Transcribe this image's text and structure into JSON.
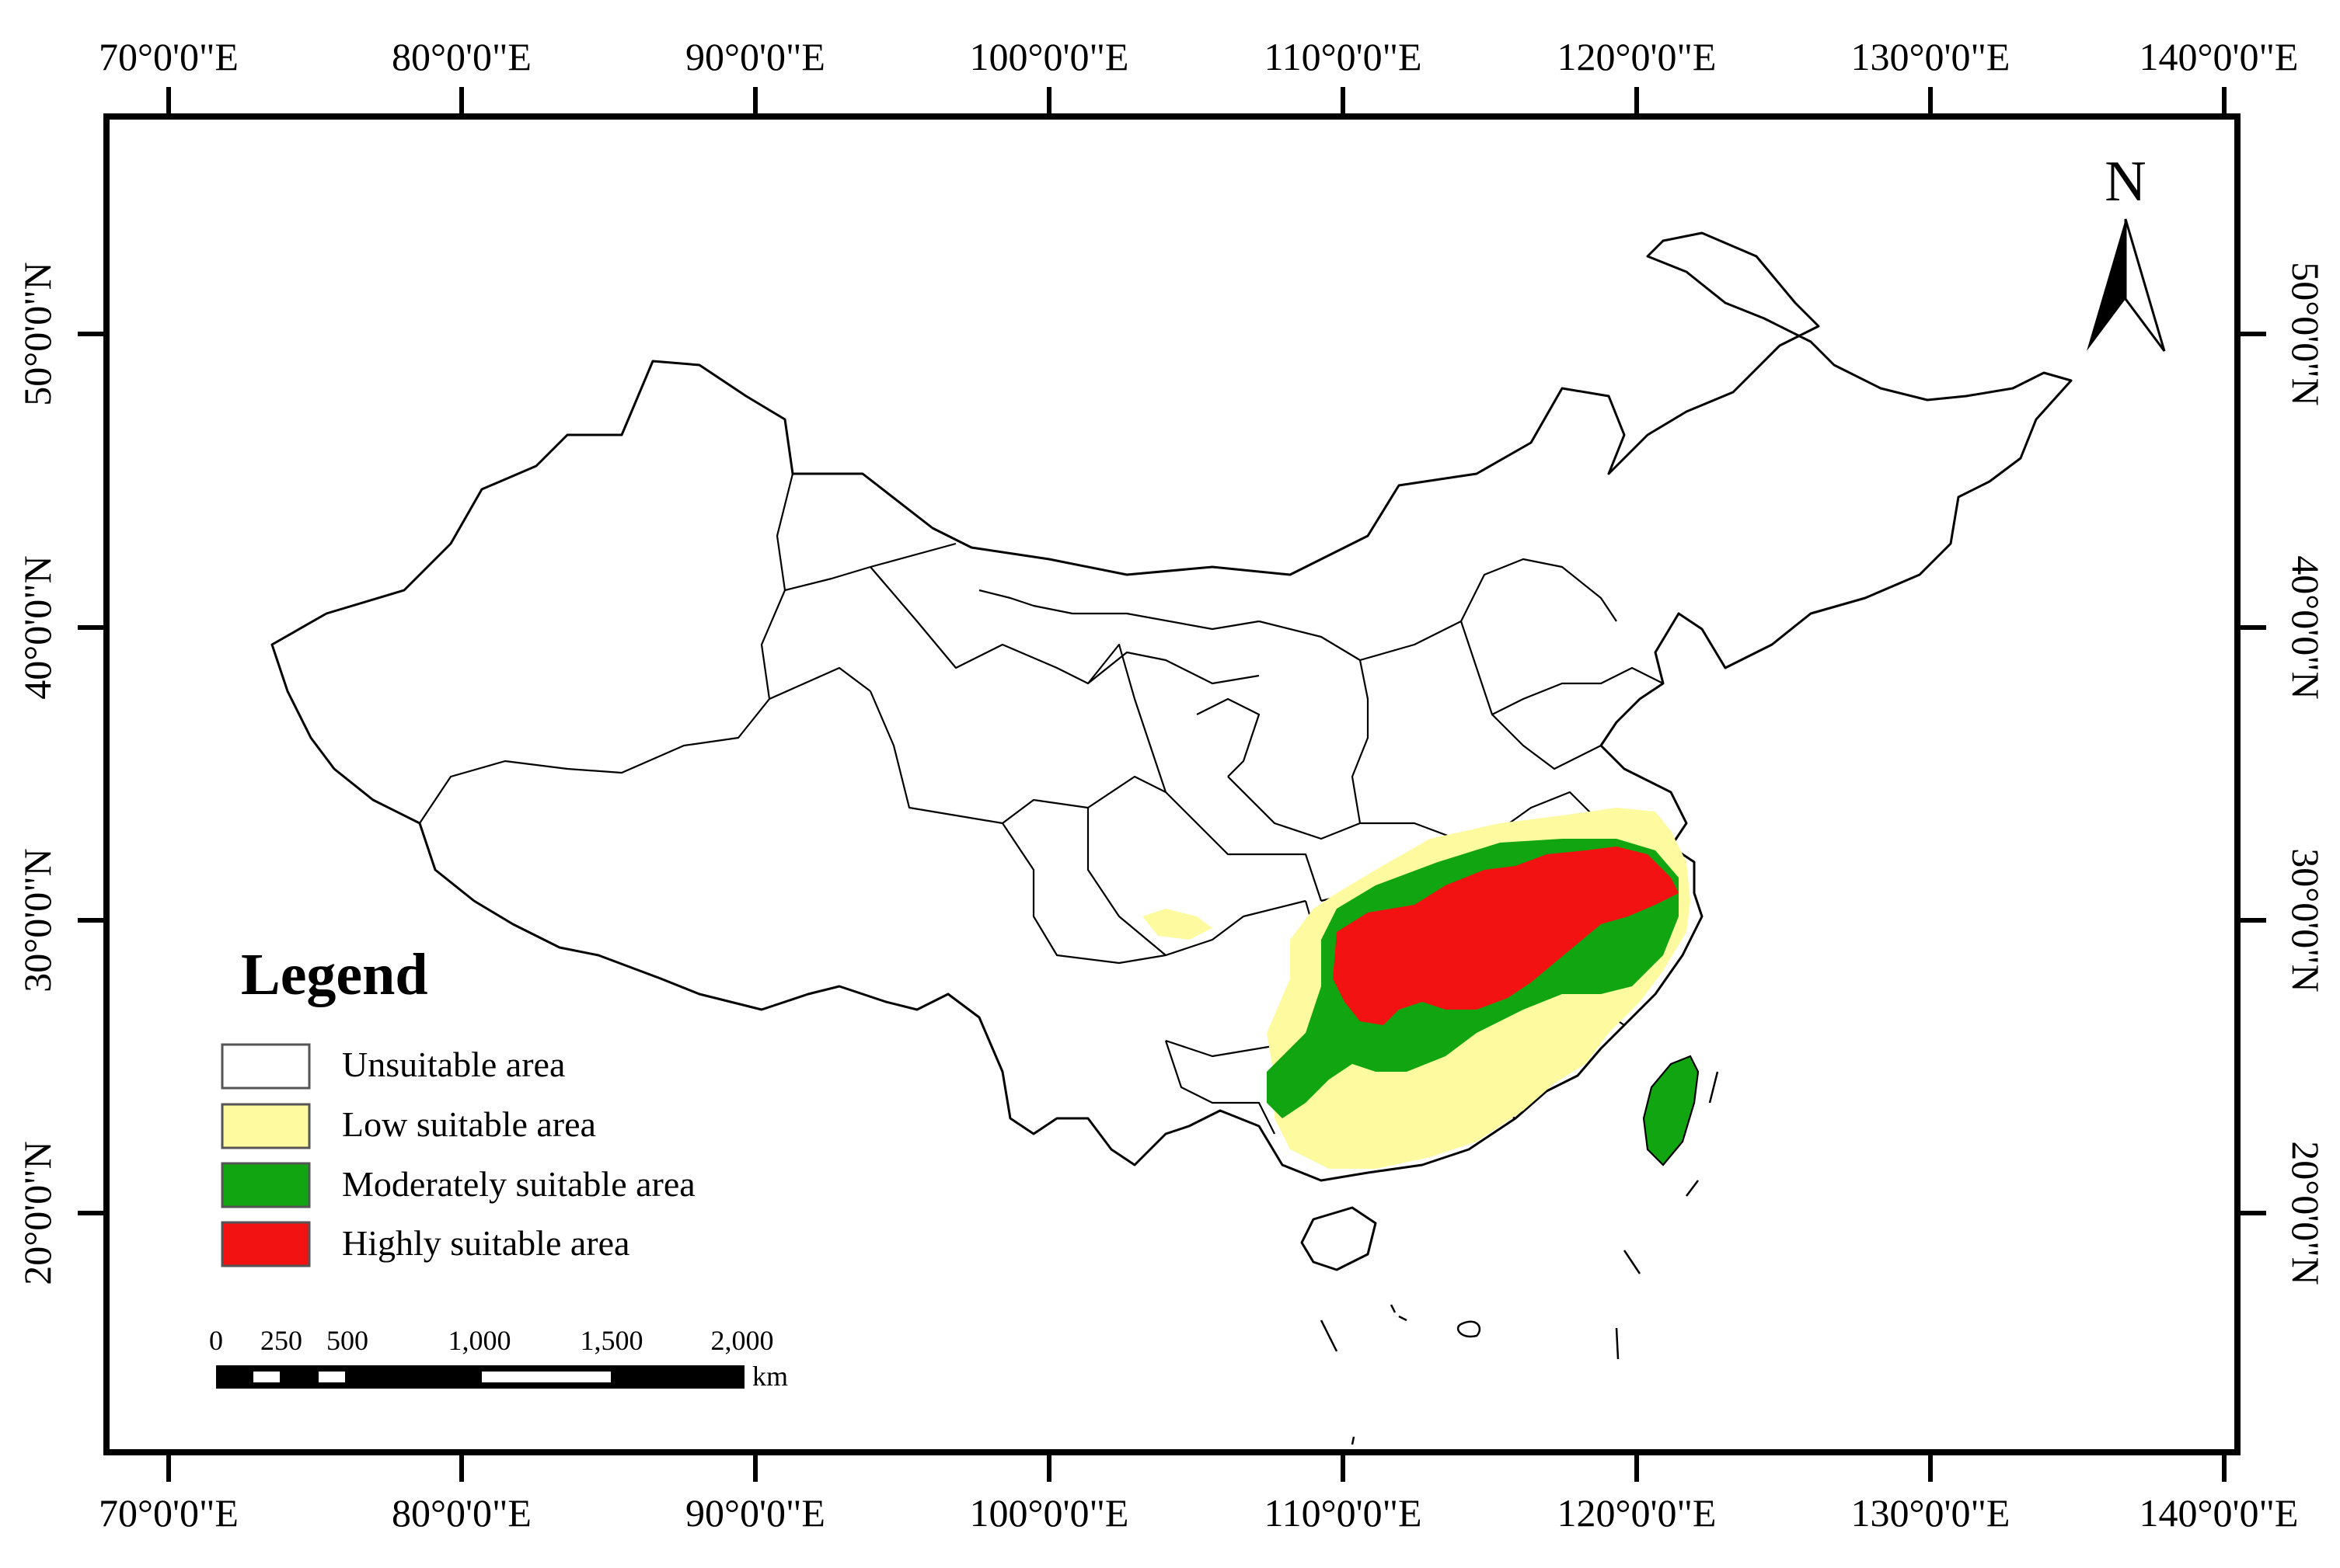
{
  "map": {
    "top_axis_labels": [
      "70°0'0\"E",
      "80°0'0\"E",
      "90°0'0\"E",
      "100°0'0\"E",
      "110°0'0\"E",
      "120°0'0\"E",
      "130°0'0\"E",
      "140°0'0\"E"
    ],
    "bottom_axis_labels": [
      "70°0'0\"E",
      "80°0'0\"E",
      "90°0'0\"E",
      "100°0'0\"E",
      "110°0'0\"E",
      "120°0'0\"E",
      "130°0'0\"E",
      "140°0'0\"E"
    ],
    "left_axis_labels": [
      "50°0'0\"N",
      "40°0'0\"N",
      "30°0'0\"N",
      "20°0'0\"N"
    ],
    "right_axis_labels": [
      "50°0'0\"N",
      "40°0'0\"N",
      "30°0'0\"N",
      "20°0'0\"N"
    ],
    "north_arrow_label": "N"
  },
  "legend": {
    "title": "Legend",
    "items": [
      {
        "label": "Unsuitable area",
        "color": "#ffffff"
      },
      {
        "label": "Low suitable area",
        "color": "#fefaa0"
      },
      {
        "label": "Moderately suitable area",
        "color": "#11a611"
      },
      {
        "label": "Highly suitable area",
        "color": "#f21212"
      }
    ]
  },
  "scale_bar": {
    "labels": [
      "0",
      "250",
      "500",
      "1,000",
      "1,500",
      "2,000"
    ],
    "unit": "km"
  }
}
